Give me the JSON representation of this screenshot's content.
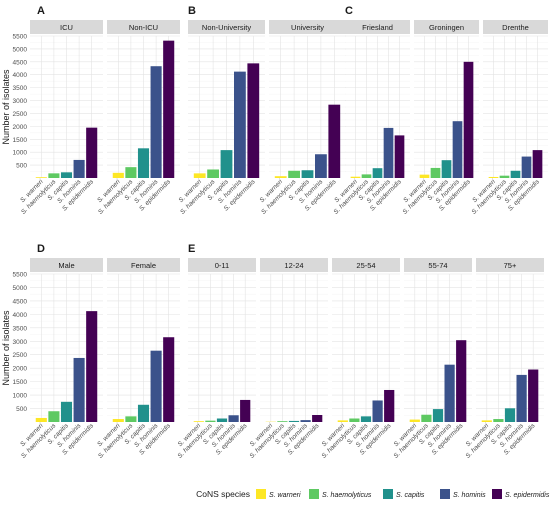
{
  "legend": {
    "title": "CoNS species",
    "items": [
      {
        "label": "S. warneri",
        "color": "#fde725"
      },
      {
        "label": "S. haemolyticus",
        "color": "#5ec962"
      },
      {
        "label": "S. capitis",
        "color": "#21918c"
      },
      {
        "label": "S. hominis",
        "color": "#3b528b"
      },
      {
        "label": "S. epidermidis",
        "color": "#440154"
      }
    ]
  },
  "colors": {
    "strip_bg": "#d9d9d9",
    "grid_major": "#e3e3e3",
    "grid_minor": "#f1f1f1",
    "text": "#1a1a1a",
    "axis_text": "#4d4d4d"
  },
  "chart_data": [
    {
      "panel": "A",
      "type": "bar",
      "ylabel": "Number of isolates",
      "ylim": [
        0,
        5500
      ],
      "yticks": [
        500,
        1000,
        1500,
        2000,
        2500,
        3000,
        3500,
        4000,
        4500,
        5000,
        5500
      ],
      "categories": [
        "S. warneri",
        "S. haemolyticus",
        "S. capitis",
        "S. hominis",
        "S. epidermidis"
      ],
      "facets": [
        {
          "name": "ICU",
          "values": [
            30,
            180,
            220,
            700,
            1950
          ]
        },
        {
          "name": "Non-ICU",
          "values": [
            200,
            420,
            1150,
            4330,
            5320
          ]
        }
      ]
    },
    {
      "panel": "B",
      "type": "bar",
      "ylim": [
        0,
        5500
      ],
      "categories": [
        "S. warneri",
        "S. haemolyticus",
        "S. capitis",
        "S. hominis",
        "S. epidermidis"
      ],
      "facets": [
        {
          "name": "Non-University",
          "values": [
            180,
            330,
            1080,
            4120,
            4440
          ]
        },
        {
          "name": "University",
          "values": [
            70,
            280,
            300,
            920,
            2840
          ]
        }
      ]
    },
    {
      "panel": "C",
      "type": "bar",
      "ylim": [
        0,
        5500
      ],
      "categories": [
        "S. warneri",
        "S. haemolyticus",
        "S. capitis",
        "S. hominis",
        "S. epidermidis"
      ],
      "facets": [
        {
          "name": "Friesland",
          "values": [
            50,
            140,
            380,
            1940,
            1650
          ]
        },
        {
          "name": "Groningen",
          "values": [
            130,
            390,
            690,
            2200,
            4500
          ]
        },
        {
          "name": "Drenthe",
          "values": [
            40,
            90,
            280,
            830,
            1080
          ]
        }
      ]
    },
    {
      "panel": "D",
      "type": "bar",
      "ylabel": "Number of isolates",
      "ylim": [
        0,
        5500
      ],
      "yticks": [
        500,
        1000,
        1500,
        2000,
        2500,
        3000,
        3500,
        4000,
        4500,
        5000,
        5500
      ],
      "categories": [
        "S. warneri",
        "S. haemolyticus",
        "S. capitis",
        "S. hominis",
        "S. epidermidis"
      ],
      "facets": [
        {
          "name": "Male",
          "values": [
            150,
            400,
            750,
            2380,
            4120
          ]
        },
        {
          "name": "Female",
          "values": [
            110,
            210,
            640,
            2650,
            3150
          ]
        }
      ]
    },
    {
      "panel": "E",
      "type": "bar",
      "ylim": [
        0,
        5500
      ],
      "categories": [
        "S. warneri",
        "S. haemolyticus",
        "S. capitis",
        "S. hominis",
        "S. epidermidis"
      ],
      "facets": [
        {
          "name": "0-11",
          "values": [
            30,
            50,
            130,
            250,
            820
          ]
        },
        {
          "name": "12-24",
          "values": [
            10,
            30,
            40,
            70,
            260
          ]
        },
        {
          "name": "25-54",
          "values": [
            60,
            130,
            210,
            800,
            1190
          ]
        },
        {
          "name": "55-74",
          "values": [
            90,
            270,
            480,
            2130,
            3040
          ]
        },
        {
          "name": "75+",
          "values": [
            60,
            110,
            510,
            1750,
            1950
          ]
        }
      ]
    }
  ]
}
